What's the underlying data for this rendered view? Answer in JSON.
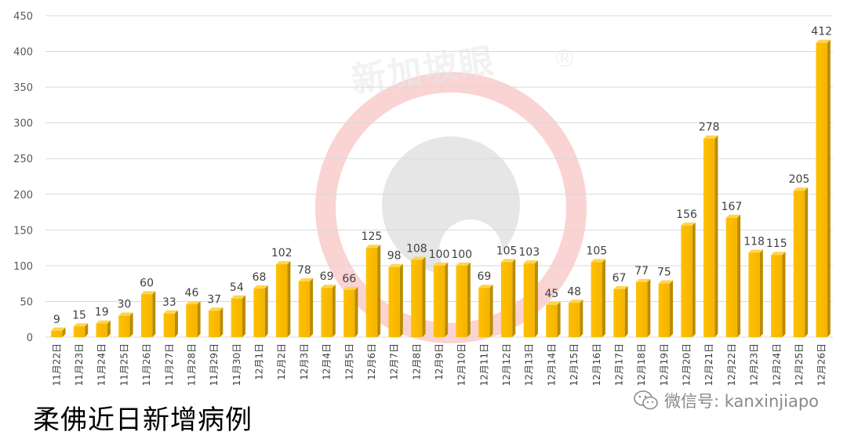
{
  "chart_data": {
    "type": "bar",
    "title": "柔佛近日新增病例",
    "xlabel": "",
    "ylabel": "",
    "ylim": [
      0,
      450
    ],
    "yticks": [
      0,
      50,
      100,
      150,
      200,
      250,
      300,
      350,
      400,
      450
    ],
    "grid": true,
    "legend": "none",
    "bar_color": "#ffc000",
    "categories": [
      "11月22日",
      "11月23日",
      "11月24日",
      "11月25日",
      "11月26日",
      "11月27日",
      "11月28日",
      "11月29日",
      "11月30日",
      "12月1日",
      "12月2日",
      "12月3日",
      "12月4日",
      "12月5日",
      "12月6日",
      "12月7日",
      "12月8日",
      "12月9日",
      "12月10日",
      "12月11日",
      "12月12日",
      "12月13日",
      "12月14日",
      "12月15日",
      "12月16日",
      "12月17日",
      "12月18日",
      "12月19日",
      "12月20日",
      "12月21日",
      "12月22日",
      "12月23日",
      "12月24日",
      "12月25日",
      "12月26日"
    ],
    "values": [
      9,
      15,
      19,
      30,
      60,
      33,
      46,
      37,
      54,
      68,
      102,
      78,
      69,
      66,
      125,
      98,
      108,
      100,
      100,
      69,
      105,
      103,
      45,
      48,
      105,
      67,
      77,
      75,
      156,
      278,
      167,
      118,
      115,
      205,
      412
    ]
  },
  "watermark": {
    "text": "新加坡眼",
    "mark": "®",
    "wechat_text": "微信号: kanxinjiapo",
    "icon": "wechat-icon"
  }
}
